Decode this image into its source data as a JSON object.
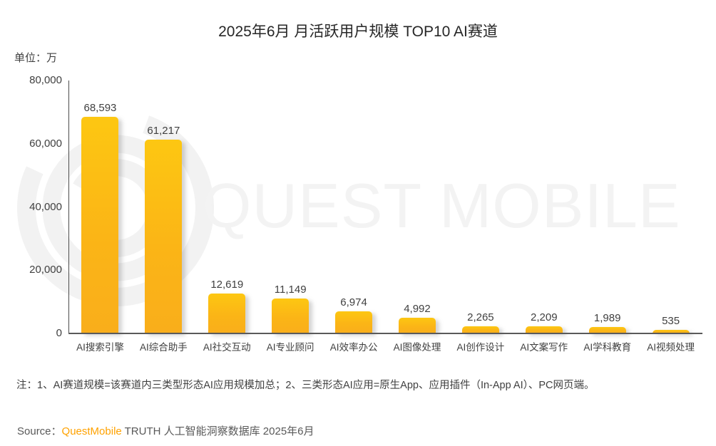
{
  "title": "2025年6月 月活跃用户规模 TOP10 AI赛道",
  "unit_label": "单位：万",
  "watermark": {
    "text": "QUEST MOBILE",
    "logo": "questmobile-rings-logo"
  },
  "chart_data": {
    "type": "bar",
    "title": "2025年6月 月活跃用户规模 TOP10 AI赛道",
    "unit": "万",
    "categories": [
      "AI搜索引擎",
      "AI综合助手",
      "AI社交互动",
      "AI专业顾问",
      "AI效率办公",
      "AI图像处理",
      "AI创作设计",
      "AI文案写作",
      "AI学科教育",
      "AI视频处理"
    ],
    "values": [
      68593,
      61217,
      12619,
      11149,
      6974,
      4992,
      2265,
      2209,
      1989,
      535
    ],
    "value_labels": [
      "68,593",
      "61,217",
      "12,619",
      "11,149",
      "6,974",
      "4,992",
      "2,265",
      "2,209",
      "1,989",
      "535"
    ],
    "ylim": [
      0,
      80000
    ],
    "yticks": [
      0,
      20000,
      40000,
      60000,
      80000
    ],
    "ytick_labels": [
      "0",
      "20,000",
      "40,000",
      "60,000",
      "80,000"
    ],
    "xlabel": "",
    "ylabel": "单位：万",
    "grid": false,
    "legend": "none",
    "bar_color_top": "#FDC712",
    "bar_color_bottom": "#F9AE1B",
    "label_color": "#404040",
    "axis_color": "#4d4d4d"
  },
  "note": {
    "text": "注：1、AI赛道规模=该赛道内三类型形态AI应用规模加总；2、三类形态AI应用=原生App、应用插件（In-App AI）、PC网页端。"
  },
  "source": {
    "prefix": "Source：",
    "brand": "QuestMobile",
    "suffix": " TRUTH 人工智能洞察数据库 2025年6月",
    "brand_color": "#FFA200"
  }
}
